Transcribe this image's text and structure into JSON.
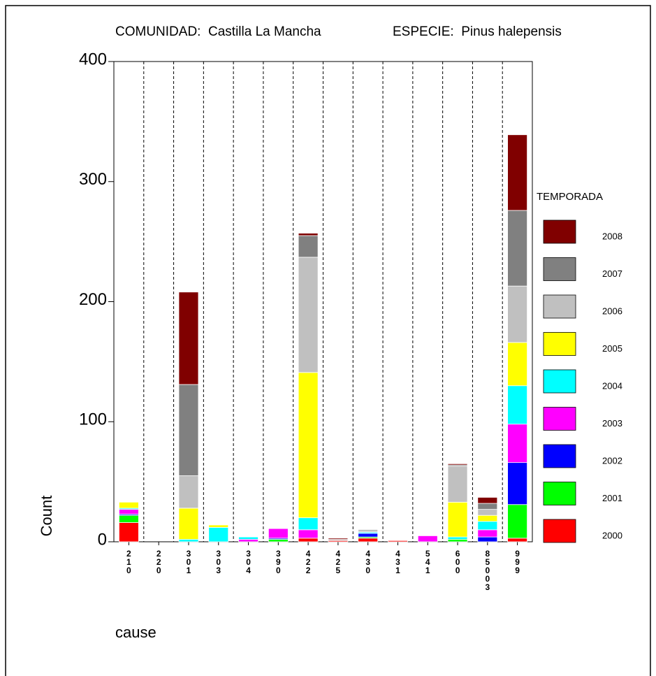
{
  "chart_data": {
    "type": "bar",
    "stacked": true,
    "title": "COMUNIDAD:  Castilla La Mancha",
    "subtitle": "ESPECIE:  Pinus halepensis",
    "x_label": "cause",
    "y_label": "Count",
    "legend_title": "TEMPORADA",
    "categories": [
      "210",
      "220",
      "301",
      "303",
      "304",
      "390",
      "422",
      "425",
      "430",
      "431",
      "541",
      "600",
      "85003",
      "999"
    ],
    "ylim": [
      0,
      400
    ],
    "yticks": [
      0,
      100,
      200,
      300,
      400
    ],
    "series": [
      {
        "name": "2000",
        "color": "#ff0000",
        "values": [
          16,
          0,
          0,
          0,
          0,
          0,
          3,
          1,
          3,
          1,
          0,
          0,
          0,
          3
        ]
      },
      {
        "name": "2001",
        "color": "#00ff00",
        "values": [
          6,
          0,
          0,
          0,
          0,
          2,
          0,
          0,
          1,
          0,
          0,
          2,
          0,
          28
        ]
      },
      {
        "name": "2002",
        "color": "#0000ff",
        "values": [
          1,
          0,
          0,
          0,
          0,
          1,
          0,
          0,
          3,
          0,
          0,
          0,
          4,
          35
        ]
      },
      {
        "name": "2003",
        "color": "#ff00ff",
        "values": [
          4,
          0,
          0,
          0,
          2,
          8,
          7,
          0,
          0,
          0,
          5,
          0,
          6,
          32
        ]
      },
      {
        "name": "2004",
        "color": "#00ffff",
        "values": [
          1,
          0,
          2,
          12,
          2,
          0,
          10,
          0,
          1,
          0,
          0,
          2,
          7,
          32
        ]
      },
      {
        "name": "2005",
        "color": "#ffff00",
        "values": [
          5,
          0,
          26,
          2,
          0,
          0,
          121,
          0,
          0,
          0,
          0,
          29,
          5,
          36
        ]
      },
      {
        "name": "2006",
        "color": "#c0c0c0",
        "values": [
          0,
          0,
          27,
          0,
          0,
          0,
          96,
          1,
          1,
          0,
          0,
          30,
          5,
          47
        ]
      },
      {
        "name": "2007",
        "color": "#808080",
        "values": [
          0,
          0,
          76,
          0,
          0,
          0,
          18,
          0,
          1,
          0,
          0,
          1,
          5,
          63
        ]
      },
      {
        "name": "2008",
        "color": "#800000",
        "values": [
          0,
          0,
          77,
          0,
          0,
          0,
          2,
          1,
          0,
          0,
          0,
          1,
          5,
          63
        ]
      }
    ]
  }
}
